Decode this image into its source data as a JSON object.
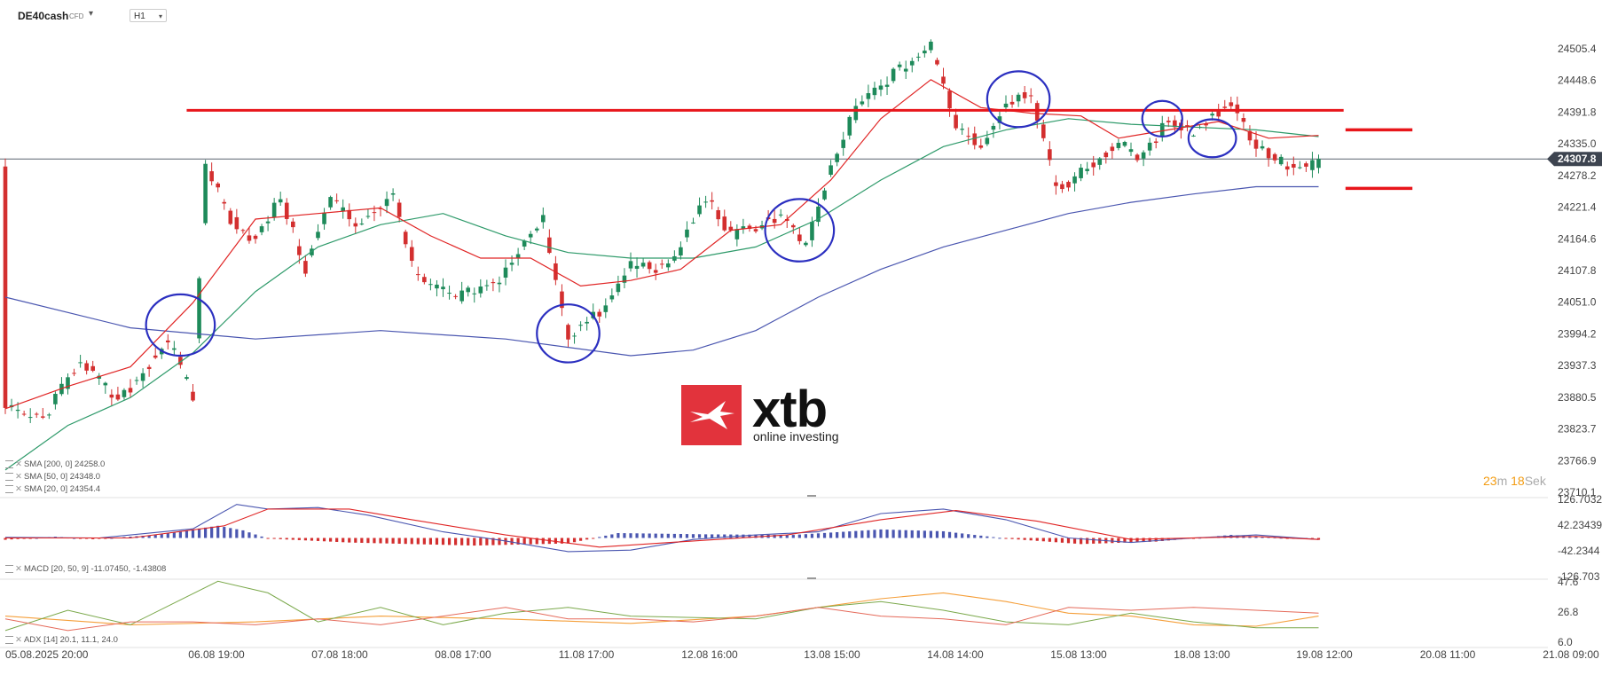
{
  "toolbar": {
    "symbol": "DE40cash",
    "symbol_type": "CFD",
    "timeframe": "H1"
  },
  "indicators": {
    "sma200": "SMA [200, 0] 24258.0",
    "sma50": "SMA [50, 0] 24348.0",
    "sma20": "SMA [20, 0] 24354.4",
    "macd": "MACD [20, 50, 9] -11.07450, -1.43808",
    "adx": "ADX [14] 20.1, 11.1, 24.0"
  },
  "timer": {
    "minutes": "23",
    "m": "m",
    "seconds": "18",
    "s": "Sek"
  },
  "logo": {
    "word": "xtb",
    "tagline": "online investing"
  },
  "colors": {
    "up": "#1e8a5a",
    "down": "#d32f2f",
    "sma200": "#4a56b0",
    "sma50": "#2e9a6a",
    "sma20": "#e02424",
    "level": "#e8161b",
    "circle": "#2b2fc0",
    "macd_line": "#4a56b0",
    "signal_line": "#e02424",
    "adx": "#f59f3a",
    "di_plus": "#7aa84a",
    "di_minus": "#e56a5a",
    "price_tag": "#3d4450"
  },
  "chart_data": {
    "type": "candlestick",
    "price_axis": [
      "24505.4",
      "24448.6",
      "24391.8",
      "24335.0",
      "24278.2",
      "24221.4",
      "24164.6",
      "24107.8",
      "24051.0",
      "23994.2",
      "23937.3",
      "23880.5",
      "23823.7",
      "23766.9",
      "23710.1"
    ],
    "current_price": "24307.8",
    "time_labels": [
      "05.08.2025 20:00",
      "06.08 19:00",
      "07.08 18:00",
      "08.08 17:00",
      "11.08 17:00",
      "12.08 16:00",
      "13.08 15:00",
      "14.08 14:00",
      "15.08 13:00",
      "18.08 13:00",
      "19.08 12:00",
      "20.08 11:00",
      "21.08 09:00"
    ],
    "ylim": [
      23710.1,
      24505.4
    ],
    "resistance_level": 24395,
    "support_marks": [
      24360,
      24255
    ],
    "price_path": [
      [
        0,
        23860
      ],
      [
        6,
        23840
      ],
      [
        12,
        23950
      ],
      [
        18,
        23870
      ],
      [
        22,
        23925
      ],
      [
        26,
        23985
      ],
      [
        30,
        23880
      ],
      [
        32,
        24300
      ],
      [
        36,
        24200
      ],
      [
        40,
        24160
      ],
      [
        44,
        24240
      ],
      [
        48,
        24110
      ],
      [
        52,
        24240
      ],
      [
        56,
        24190
      ],
      [
        62,
        24240
      ],
      [
        66,
        24090
      ],
      [
        72,
        24060
      ],
      [
        78,
        24080
      ],
      [
        86,
        24200
      ],
      [
        90,
        23990
      ],
      [
        96,
        24040
      ],
      [
        100,
        24120
      ],
      [
        106,
        24110
      ],
      [
        112,
        24240
      ],
      [
        116,
        24170
      ],
      [
        124,
        24205
      ],
      [
        128,
        24150
      ],
      [
        132,
        24290
      ],
      [
        136,
        24400
      ],
      [
        142,
        24460
      ],
      [
        148,
        24510
      ],
      [
        152,
        24370
      ],
      [
        156,
        24330
      ],
      [
        160,
        24410
      ],
      [
        164,
        24430
      ],
      [
        168,
        24250
      ],
      [
        174,
        24300
      ],
      [
        178,
        24335
      ],
      [
        182,
        24310
      ],
      [
        186,
        24380
      ],
      [
        190,
        24355
      ],
      [
        196,
        24410
      ],
      [
        200,
        24330
      ],
      [
        206,
        24288
      ],
      [
        210,
        24300
      ]
    ],
    "sma20": [
      [
        0,
        23860
      ],
      [
        10,
        23900
      ],
      [
        20,
        23935
      ],
      [
        30,
        24050
      ],
      [
        40,
        24200
      ],
      [
        50,
        24210
      ],
      [
        60,
        24220
      ],
      [
        68,
        24170
      ],
      [
        76,
        24130
      ],
      [
        84,
        24130
      ],
      [
        92,
        24080
      ],
      [
        100,
        24090
      ],
      [
        108,
        24110
      ],
      [
        116,
        24180
      ],
      [
        124,
        24190
      ],
      [
        132,
        24270
      ],
      [
        140,
        24380
      ],
      [
        148,
        24450
      ],
      [
        156,
        24400
      ],
      [
        164,
        24390
      ],
      [
        172,
        24385
      ],
      [
        178,
        24345
      ],
      [
        186,
        24360
      ],
      [
        194,
        24375
      ],
      [
        202,
        24345
      ],
      [
        210,
        24350
      ]
    ],
    "sma50": [
      [
        0,
        23750
      ],
      [
        10,
        23830
      ],
      [
        20,
        23880
      ],
      [
        30,
        23960
      ],
      [
        40,
        24070
      ],
      [
        50,
        24150
      ],
      [
        60,
        24190
      ],
      [
        70,
        24210
      ],
      [
        80,
        24170
      ],
      [
        90,
        24140
      ],
      [
        100,
        24130
      ],
      [
        110,
        24130
      ],
      [
        120,
        24150
      ],
      [
        130,
        24200
      ],
      [
        140,
        24270
      ],
      [
        150,
        24330
      ],
      [
        160,
        24360
      ],
      [
        170,
        24380
      ],
      [
        180,
        24370
      ],
      [
        190,
        24365
      ],
      [
        200,
        24360
      ],
      [
        210,
        24348
      ]
    ],
    "sma200": [
      [
        0,
        24060
      ],
      [
        20,
        24005
      ],
      [
        40,
        23985
      ],
      [
        60,
        24000
      ],
      [
        80,
        23985
      ],
      [
        100,
        23955
      ],
      [
        110,
        23965
      ],
      [
        120,
        24000
      ],
      [
        130,
        24060
      ],
      [
        140,
        24110
      ],
      [
        150,
        24150
      ],
      [
        160,
        24180
      ],
      [
        170,
        24210
      ],
      [
        180,
        24230
      ],
      [
        190,
        24245
      ],
      [
        200,
        24258
      ],
      [
        210,
        24258
      ]
    ],
    "macd": {
      "axis_labels": [
        "126.7032",
        "42.23439",
        "-42.2344",
        "-126.703"
      ],
      "ylim": [
        -126.703,
        126.7032
      ],
      "macd_line": [
        [
          0,
          2
        ],
        [
          15,
          0
        ],
        [
          30,
          30
        ],
        [
          37,
          110
        ],
        [
          42,
          95
        ],
        [
          50,
          100
        ],
        [
          58,
          75
        ],
        [
          70,
          20
        ],
        [
          80,
          -10
        ],
        [
          90,
          -45
        ],
        [
          100,
          -40
        ],
        [
          110,
          -5
        ],
        [
          120,
          10
        ],
        [
          130,
          20
        ],
        [
          140,
          80
        ],
        [
          150,
          95
        ],
        [
          160,
          60
        ],
        [
          170,
          0
        ],
        [
          180,
          -15
        ],
        [
          190,
          0
        ],
        [
          200,
          10
        ],
        [
          210,
          -5
        ]
      ],
      "signal_line": [
        [
          0,
          0
        ],
        [
          20,
          0
        ],
        [
          35,
          40
        ],
        [
          42,
          95
        ],
        [
          55,
          95
        ],
        [
          65,
          60
        ],
        [
          80,
          10
        ],
        [
          95,
          -30
        ],
        [
          110,
          -10
        ],
        [
          125,
          10
        ],
        [
          140,
          60
        ],
        [
          152,
          90
        ],
        [
          165,
          55
        ],
        [
          180,
          -5
        ],
        [
          200,
          5
        ],
        [
          210,
          -5
        ]
      ],
      "histogram": [
        [
          0,
          -6
        ],
        [
          8,
          4
        ],
        [
          14,
          -4
        ],
        [
          24,
          10
        ],
        [
          34,
          40
        ],
        [
          38,
          25
        ],
        [
          42,
          -2
        ],
        [
          55,
          -15
        ],
        [
          75,
          -25
        ],
        [
          90,
          -18
        ],
        [
          98,
          16
        ],
        [
          112,
          12
        ],
        [
          126,
          10
        ],
        [
          140,
          28
        ],
        [
          150,
          22
        ],
        [
          160,
          -2
        ],
        [
          172,
          -20
        ],
        [
          184,
          -12
        ],
        [
          196,
          10
        ],
        [
          210,
          -6
        ]
      ]
    },
    "adx": {
      "axis_labels": [
        "47.6",
        "26.8",
        "6.0"
      ],
      "ylim": [
        6.0,
        47.6
      ],
      "adx_line": [
        [
          0,
          24
        ],
        [
          20,
          18
        ],
        [
          40,
          20
        ],
        [
          60,
          24
        ],
        [
          80,
          22
        ],
        [
          100,
          19
        ],
        [
          120,
          24
        ],
        [
          140,
          36
        ],
        [
          150,
          40
        ],
        [
          160,
          34
        ],
        [
          170,
          26
        ],
        [
          180,
          24
        ],
        [
          190,
          18
        ],
        [
          200,
          17
        ],
        [
          210,
          24
        ]
      ],
      "di_plus": [
        [
          0,
          14
        ],
        [
          10,
          28
        ],
        [
          20,
          18
        ],
        [
          34,
          48
        ],
        [
          42,
          40
        ],
        [
          50,
          20
        ],
        [
          60,
          30
        ],
        [
          70,
          18
        ],
        [
          80,
          26
        ],
        [
          90,
          30
        ],
        [
          100,
          24
        ],
        [
          120,
          22
        ],
        [
          130,
          30
        ],
        [
          140,
          34
        ],
        [
          150,
          28
        ],
        [
          160,
          20
        ],
        [
          170,
          18
        ],
        [
          180,
          26
        ],
        [
          190,
          20
        ],
        [
          200,
          16
        ],
        [
          210,
          16
        ]
      ],
      "di_minus": [
        [
          0,
          22
        ],
        [
          10,
          14
        ],
        [
          20,
          20
        ],
        [
          30,
          20
        ],
        [
          40,
          18
        ],
        [
          50,
          22
        ],
        [
          60,
          18
        ],
        [
          70,
          24
        ],
        [
          80,
          30
        ],
        [
          90,
          22
        ],
        [
          100,
          22
        ],
        [
          110,
          20
        ],
        [
          120,
          24
        ],
        [
          130,
          30
        ],
        [
          140,
          24
        ],
        [
          150,
          22
        ],
        [
          160,
          18
        ],
        [
          170,
          30
        ],
        [
          180,
          28
        ],
        [
          190,
          30
        ],
        [
          200,
          28
        ],
        [
          210,
          26
        ]
      ]
    }
  }
}
